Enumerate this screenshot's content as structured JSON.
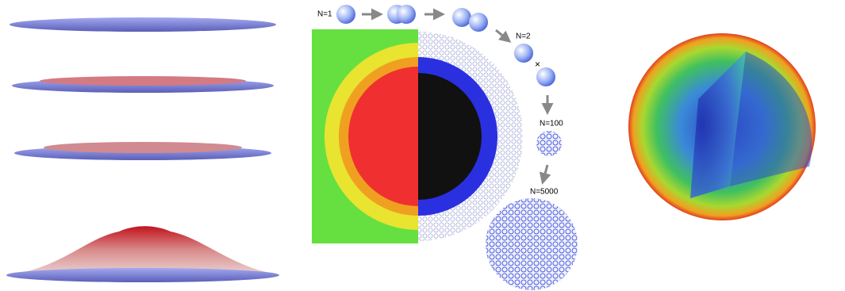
{
  "stages": [
    {
      "label": "N=1"
    },
    {
      "label": "N=2"
    },
    {
      "label": "N=100"
    },
    {
      "label": "N=5000"
    }
  ]
}
